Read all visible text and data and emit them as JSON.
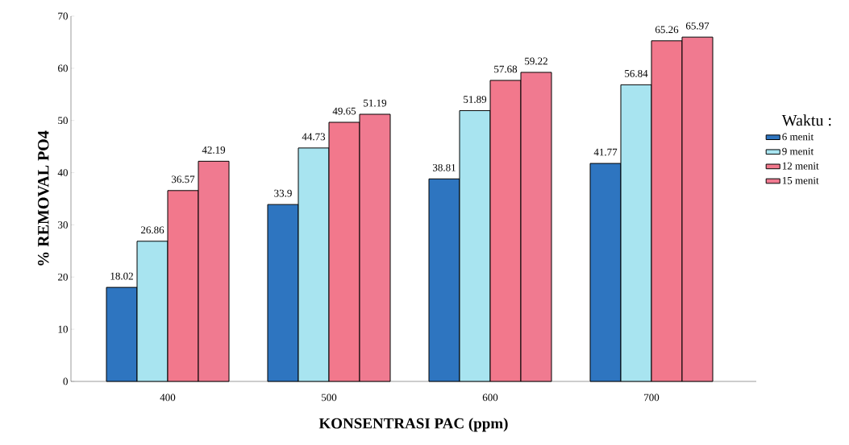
{
  "chart_data": {
    "type": "bar",
    "xlabel": "KONSENTRASI PAC (ppm)",
    "ylabel": "% REMOVAL PO4",
    "legend_title": "Waktu :",
    "categories": [
      "400",
      "500",
      "600",
      "700"
    ],
    "series": [
      {
        "name": "6 menit",
        "color": "#2e75c0",
        "values": [
          18.02,
          33.9,
          38.81,
          41.77
        ]
      },
      {
        "name": "9 menit",
        "color": "#a8e4f0",
        "values": [
          26.86,
          44.73,
          51.89,
          56.84
        ]
      },
      {
        "name": "12 menit",
        "color": "#f2788c",
        "values": [
          36.57,
          49.65,
          57.68,
          65.26
        ]
      },
      {
        "name": "15 menit",
        "color": "#f07a90",
        "values": [
          42.19,
          51.19,
          59.22,
          65.97
        ]
      }
    ],
    "ylim": [
      0,
      70
    ],
    "yticks": [
      0,
      10,
      20,
      30,
      40,
      50,
      60,
      70
    ],
    "data_labels": true,
    "legend": "right",
    "grid": false
  }
}
